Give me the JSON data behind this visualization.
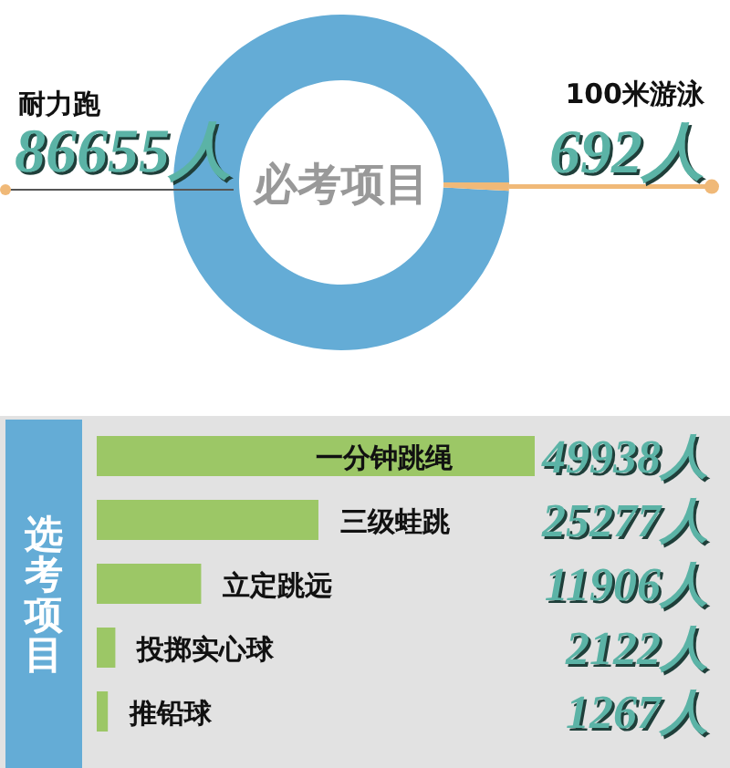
{
  "chart_data": [
    {
      "type": "donut",
      "title": "必考项目",
      "categories": [
        "耐力跑",
        "100米游泳"
      ],
      "values": [
        86655,
        692
      ],
      "colors": [
        "#64acd6",
        "#f0b978"
      ],
      "value_labels": [
        "86655人",
        "692人"
      ]
    },
    {
      "type": "bar",
      "orientation": "horizontal",
      "title": "选考项目",
      "categories": [
        "一分钟跳绳",
        "三级蛙跳",
        "立定跳远",
        "投掷实心球",
        "推铅球"
      ],
      "values": [
        49938,
        25277,
        11906,
        2122,
        1267
      ],
      "color": "#9cc766",
      "value_labels": [
        "49938人",
        "25277人",
        "11906人",
        "2122人",
        "1267人"
      ]
    }
  ]
}
